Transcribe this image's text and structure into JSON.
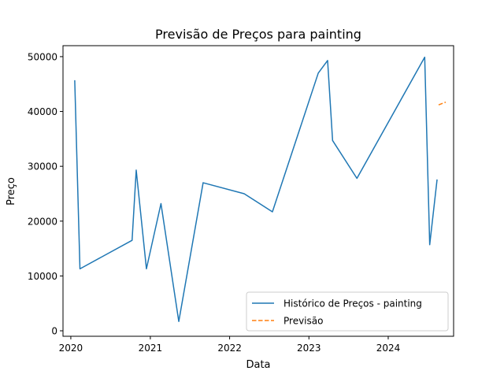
{
  "chart_data": {
    "type": "line",
    "title": "Previsão de Preços para painting",
    "xlabel": "Data",
    "ylabel": "Preço",
    "xlim": [
      "2019-11-26",
      "2024-10-28"
    ],
    "ylim": [
      -1000,
      52000
    ],
    "x_ticks": [
      {
        "date": "2020-01-01",
        "label": "2020"
      },
      {
        "date": "2021-01-01",
        "label": "2021"
      },
      {
        "date": "2022-01-01",
        "label": "2022"
      },
      {
        "date": "2023-01-01",
        "label": "2023"
      },
      {
        "date": "2024-01-01",
        "label": "2024"
      }
    ],
    "y_ticks": [
      {
        "value": 0,
        "label": "0"
      },
      {
        "value": 10000,
        "label": "10000"
      },
      {
        "value": 20000,
        "label": "20000"
      },
      {
        "value": 30000,
        "label": "30000"
      },
      {
        "value": 40000,
        "label": "40000"
      },
      {
        "value": 50000,
        "label": "50000"
      }
    ],
    "grid": false,
    "legend_position": "lower-right",
    "series": [
      {
        "name": "Histórico de Preços - painting",
        "color": "#1f77b4",
        "style": "solid",
        "points": [
          {
            "x": "2020-01-19",
            "y": 45700
          },
          {
            "x": "2020-02-12",
            "y": 11300
          },
          {
            "x": "2020-10-09",
            "y": 16500
          },
          {
            "x": "2020-10-28",
            "y": 29300
          },
          {
            "x": "2020-12-14",
            "y": 11300
          },
          {
            "x": "2021-02-19",
            "y": 23200
          },
          {
            "x": "2021-05-12",
            "y": 1700
          },
          {
            "x": "2021-09-01",
            "y": 27000
          },
          {
            "x": "2022-03-09",
            "y": 25000
          },
          {
            "x": "2022-07-17",
            "y": 21700
          },
          {
            "x": "2023-02-13",
            "y": 47000
          },
          {
            "x": "2023-03-28",
            "y": 49300
          },
          {
            "x": "2023-04-20",
            "y": 34700
          },
          {
            "x": "2023-08-10",
            "y": 27800
          },
          {
            "x": "2024-06-17",
            "y": 49900
          },
          {
            "x": "2024-07-10",
            "y": 15700
          },
          {
            "x": "2024-08-13",
            "y": 27600
          }
        ]
      },
      {
        "name": "Previsão",
        "color": "#ff7f0e",
        "style": "dashed",
        "points": [
          {
            "x": "2024-08-20",
            "y": 41200
          },
          {
            "x": "2024-09-22",
            "y": 41700
          }
        ]
      }
    ]
  }
}
